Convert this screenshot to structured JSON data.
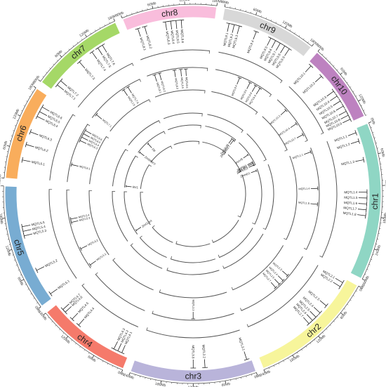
{
  "chromosomes": [
    {
      "name": "chr1",
      "color": "#8fd6c4",
      "length_mb": 300,
      "ticks": [
        "0Mb",
        "60Mb",
        "120Mb",
        "180Mb",
        "240Mb",
        "300Mb"
      ]
    },
    {
      "name": "chr2",
      "color": "#f7f59b",
      "length_mb": 240,
      "ticks": [
        "0Mb",
        "60Mb",
        "120Mb",
        "180Mb",
        "240Mb"
      ]
    },
    {
      "name": "chr3",
      "color": "#b9b4da",
      "length_mb": 240,
      "ticks": [
        "0Mb",
        "60Mb",
        "120Mb",
        "180Mb",
        "240Mb"
      ]
    },
    {
      "name": "chr4",
      "color": "#f57a6b",
      "length_mb": 180,
      "ticks": [
        "0Mb",
        "60Mb",
        "120Mb",
        "180Mb"
      ]
    },
    {
      "name": "chr5",
      "color": "#78acd2",
      "length_mb": 240,
      "ticks": [
        "0Mb",
        "60Mb",
        "120Mb",
        "180Mb",
        "240Mb"
      ]
    },
    {
      "name": "chr6",
      "color": "#f9ad5c",
      "length_mb": 180,
      "ticks": [
        "0Mb",
        "60Mb",
        "120Mb",
        "180Mb"
      ]
    },
    {
      "name": "chr7",
      "color": "#a5d867",
      "length_mb": 180,
      "ticks": [
        "0Mb",
        "60Mb",
        "120Mb",
        "180Mb"
      ]
    },
    {
      "name": "chr8",
      "color": "#f9bddc",
      "length_mb": 180,
      "ticks": [
        "0Mb",
        "60Mb",
        "120Mb",
        "180Mb"
      ]
    },
    {
      "name": "chr9",
      "color": "#d8d8d8",
      "length_mb": 180,
      "ticks": [
        "0Mb",
        "60Mb",
        "120Mb",
        "180Mb"
      ]
    },
    {
      "name": "chr10",
      "color": "#bd82c0",
      "length_mb": 150,
      "ticks": [
        "0Mb",
        "60Mb",
        "120Mb"
      ]
    }
  ],
  "outer_qtls": [
    {
      "label": "MQTL1.1",
      "chr": 0,
      "pos": 0.03
    },
    {
      "label": "MQTL1.2",
      "chr": 0,
      "pos": 0.09
    },
    {
      "label": "MQTL1.3",
      "chr": 0,
      "pos": 0.22
    },
    {
      "label": "MQTL1.4",
      "chr": 0,
      "pos": 0.44
    },
    {
      "label": "MQTL1.5",
      "chr": 0,
      "pos": 0.48
    },
    {
      "label": "MQTL1.6",
      "chr": 0,
      "pos": 0.52
    },
    {
      "label": "MQTL1.7",
      "chr": 0,
      "pos": 0.56
    },
    {
      "label": "MQTL1.8",
      "chr": 0,
      "pos": 0.6
    },
    {
      "label": "MQTL2.1",
      "chr": 1,
      "pos": 0.04
    },
    {
      "label": "MQTL2.2",
      "chr": 1,
      "pos": 0.08
    },
    {
      "label": "MQTL2.3",
      "chr": 1,
      "pos": 0.28
    },
    {
      "label": "MQTL2.4",
      "chr": 1,
      "pos": 0.36
    },
    {
      "label": "MQTL2.5",
      "chr": 1,
      "pos": 0.41
    },
    {
      "label": "MQTL2.6",
      "chr": 1,
      "pos": 0.45
    },
    {
      "label": "MQTL2.7",
      "chr": 1,
      "pos": 0.49
    },
    {
      "label": "MQTL3.1",
      "chr": 2,
      "pos": 0.04
    },
    {
      "label": "MQTL3.2",
      "chr": 2,
      "pos": 0.4
    },
    {
      "label": "MQTL3.3",
      "chr": 2,
      "pos": 0.5
    },
    {
      "label": "MQTL4.1",
      "chr": 3,
      "pos": 0.08
    },
    {
      "label": "MQTL4.2",
      "chr": 3,
      "pos": 0.13
    },
    {
      "label": "MQTL4.3",
      "chr": 3,
      "pos": 0.18
    },
    {
      "label": "MQTL4.4",
      "chr": 3,
      "pos": 0.66
    },
    {
      "label": "MQTL4.5",
      "chr": 3,
      "pos": 0.76
    },
    {
      "label": "MQTL4.6",
      "chr": 3,
      "pos": 0.87
    },
    {
      "label": "MQTL4.7",
      "chr": 3,
      "pos": 0.91
    },
    {
      "label": "MQTL5.1",
      "chr": 4,
      "pos": 0.04
    },
    {
      "label": "MQTL5.2",
      "chr": 4,
      "pos": 0.27
    },
    {
      "label": "MQTL5.3",
      "chr": 4,
      "pos": 0.58
    },
    {
      "label": "MQTL5.4",
      "chr": 4,
      "pos": 0.62
    },
    {
      "label": "MQTL5.5",
      "chr": 4,
      "pos": 0.66
    },
    {
      "label": "MQTL6.1",
      "chr": 5,
      "pos": 0.22
    },
    {
      "label": "MQTL6.2",
      "chr": 5,
      "pos": 0.4
    },
    {
      "label": "MQTL6.3",
      "chr": 5,
      "pos": 0.55
    },
    {
      "label": "MQTL6.4",
      "chr": 5,
      "pos": 0.74
    },
    {
      "label": "MQTL6.5",
      "chr": 5,
      "pos": 0.8
    },
    {
      "label": "MQTL6.6",
      "chr": 5,
      "pos": 0.86
    },
    {
      "label": "MQTL7.1",
      "chr": 6,
      "pos": 0.08
    },
    {
      "label": "MQTL7.2",
      "chr": 6,
      "pos": 0.14
    },
    {
      "label": "MQTL7.3",
      "chr": 6,
      "pos": 0.44
    },
    {
      "label": "MQTL7.4",
      "chr": 6,
      "pos": 0.62
    },
    {
      "label": "MQTL7.5",
      "chr": 6,
      "pos": 0.7
    },
    {
      "label": "MQTL7.6",
      "chr": 6,
      "pos": 0.76
    },
    {
      "label": "MQTL8.1",
      "chr": 7,
      "pos": 0.12
    },
    {
      "label": "MQTL8.2",
      "chr": 7,
      "pos": 0.2
    },
    {
      "label": "MQTL8.3",
      "chr": 7,
      "pos": 0.44
    },
    {
      "label": "MQTL8.4",
      "chr": 7,
      "pos": 0.5
    },
    {
      "label": "MQTL8.5",
      "chr": 7,
      "pos": 0.56
    },
    {
      "label": "MQTL8.6",
      "chr": 7,
      "pos": 0.62
    },
    {
      "label": "MQTL9.1",
      "chr": 8,
      "pos": 0.08
    },
    {
      "label": "MQTL9.2",
      "chr": 8,
      "pos": 0.14
    },
    {
      "label": "MQTL9.3",
      "chr": 8,
      "pos": 0.2
    },
    {
      "label": "MQTL9.4",
      "chr": 8,
      "pos": 0.4
    },
    {
      "label": "MQTL9.5",
      "chr": 8,
      "pos": 0.58
    },
    {
      "label": "MQTL9.6",
      "chr": 8,
      "pos": 0.64
    },
    {
      "label": "MQTL9.7",
      "chr": 8,
      "pos": 0.7
    },
    {
      "label": "MQTL9.8",
      "chr": 8,
      "pos": 0.76
    },
    {
      "label": "MQTL9.9",
      "chr": 8,
      "pos": 0.82
    },
    {
      "label": "MQTL10.1",
      "chr": 9,
      "pos": 0.06
    },
    {
      "label": "MQTL10.2",
      "chr": 9,
      "pos": 0.26
    },
    {
      "label": "MQTL10.3",
      "chr": 9,
      "pos": 0.52
    },
    {
      "label": "MQTL10.4",
      "chr": 9,
      "pos": 0.6
    },
    {
      "label": "MQTL10.5",
      "chr": 9,
      "pos": 0.68
    },
    {
      "label": "MQTL10.6",
      "chr": 9,
      "pos": 0.76
    },
    {
      "label": "MQTL10.7",
      "chr": 9,
      "pos": 0.84
    },
    {
      "label": "MQTL10.8",
      "chr": 9,
      "pos": 0.9
    },
    {
      "label": "MQTL10.9",
      "chr": 9,
      "pos": 0.96
    }
  ],
  "middle_qtls": [
    {
      "label": "MQTL1.1",
      "chr": 0,
      "pos": 0.05
    },
    {
      "label": "MQTL1.4",
      "chr": 0,
      "pos": 0.4
    },
    {
      "label": "MQTL1.5",
      "chr": 0,
      "pos": 0.55
    },
    {
      "label": "MQTL2.3",
      "chr": 1,
      "pos": 0.3
    },
    {
      "label": "MQTL2.4",
      "chr": 1,
      "pos": 0.38
    },
    {
      "label": "MQTL2.5",
      "chr": 1,
      "pos": 0.44
    },
    {
      "label": "MQTL2.7",
      "chr": 1,
      "pos": 0.5
    },
    {
      "label": "MQTL3.3",
      "chr": 2,
      "pos": 0.5
    },
    {
      "label": "MQTL5.1",
      "chr": 4,
      "pos": 0.05
    },
    {
      "label": "MQTL5.2",
      "chr": 4,
      "pos": 0.27
    },
    {
      "label": "MQTL5.3",
      "chr": 4,
      "pos": 0.6
    },
    {
      "label": "MQTL5.4",
      "chr": 4,
      "pos": 0.64
    },
    {
      "label": "MQTL6.1",
      "chr": 5,
      "pos": 0.3
    },
    {
      "label": "MQTL6.3",
      "chr": 5,
      "pos": 0.7
    },
    {
      "label": "MQTL6.4",
      "chr": 5,
      "pos": 0.76
    },
    {
      "label": "MQTL6.5",
      "chr": 5,
      "pos": 0.82
    },
    {
      "label": "MQTL6.6",
      "chr": 5,
      "pos": 0.88
    },
    {
      "label": "MQTL7.1",
      "chr": 6,
      "pos": 0.1
    },
    {
      "label": "MQTL7.5",
      "chr": 6,
      "pos": 0.68
    },
    {
      "label": "MQTL7.6",
      "chr": 6,
      "pos": 0.76
    },
    {
      "label": "MQTL8.1",
      "chr": 7,
      "pos": 0.14
    },
    {
      "label": "MQTL8.2",
      "chr": 7,
      "pos": 0.22
    },
    {
      "label": "MQTL8.3",
      "chr": 7,
      "pos": 0.46
    },
    {
      "label": "MQTL8.5",
      "chr": 7,
      "pos": 0.56
    },
    {
      "label": "MQTL8.6",
      "chr": 7,
      "pos": 0.64
    },
    {
      "label": "MQTL9.4",
      "chr": 8,
      "pos": 0.42
    },
    {
      "label": "MQTL9.5",
      "chr": 8,
      "pos": 0.6
    },
    {
      "label": "MQTL9.8",
      "chr": 8,
      "pos": 0.7
    },
    {
      "label": "MQTL9.9",
      "chr": 8,
      "pos": 0.78
    },
    {
      "label": "MQTL10.2",
      "chr": 9,
      "pos": 0.28
    },
    {
      "label": "MQTL10.4",
      "chr": 9,
      "pos": 0.6
    },
    {
      "label": "MQTL10.7",
      "chr": 9,
      "pos": 0.84
    }
  ],
  "genes": [
    {
      "label": "ZmPIN1",
      "chr": 9,
      "pos": 0.85
    },
    {
      "label": "ZmHO1",
      "chr": 0,
      "pos": 0.04
    },
    {
      "label": "ZmHUC2",
      "chr": 9,
      "pos": 0.96
    },
    {
      "label": "BnLMI1",
      "chr": 9,
      "pos": 0.9
    },
    {
      "label": "PHYB",
      "chr": 9,
      "pos": 0.55
    },
    {
      "label": "ZmSWEET",
      "chr": 8,
      "pos": 0.94
    },
    {
      "label": "ZmSAUR",
      "chr": 8,
      "pos": 0.88
    },
    {
      "label": "ZmCLA4",
      "chr": 4,
      "pos": 0.1
    },
    {
      "label": "BV1",
      "chr": 5,
      "pos": 0.06
    },
    {
      "label": "ZmWRKY",
      "chr": 6,
      "pos": 0.05
    },
    {
      "label": "D8",
      "chr": 6,
      "pos": 0.4
    }
  ]
}
